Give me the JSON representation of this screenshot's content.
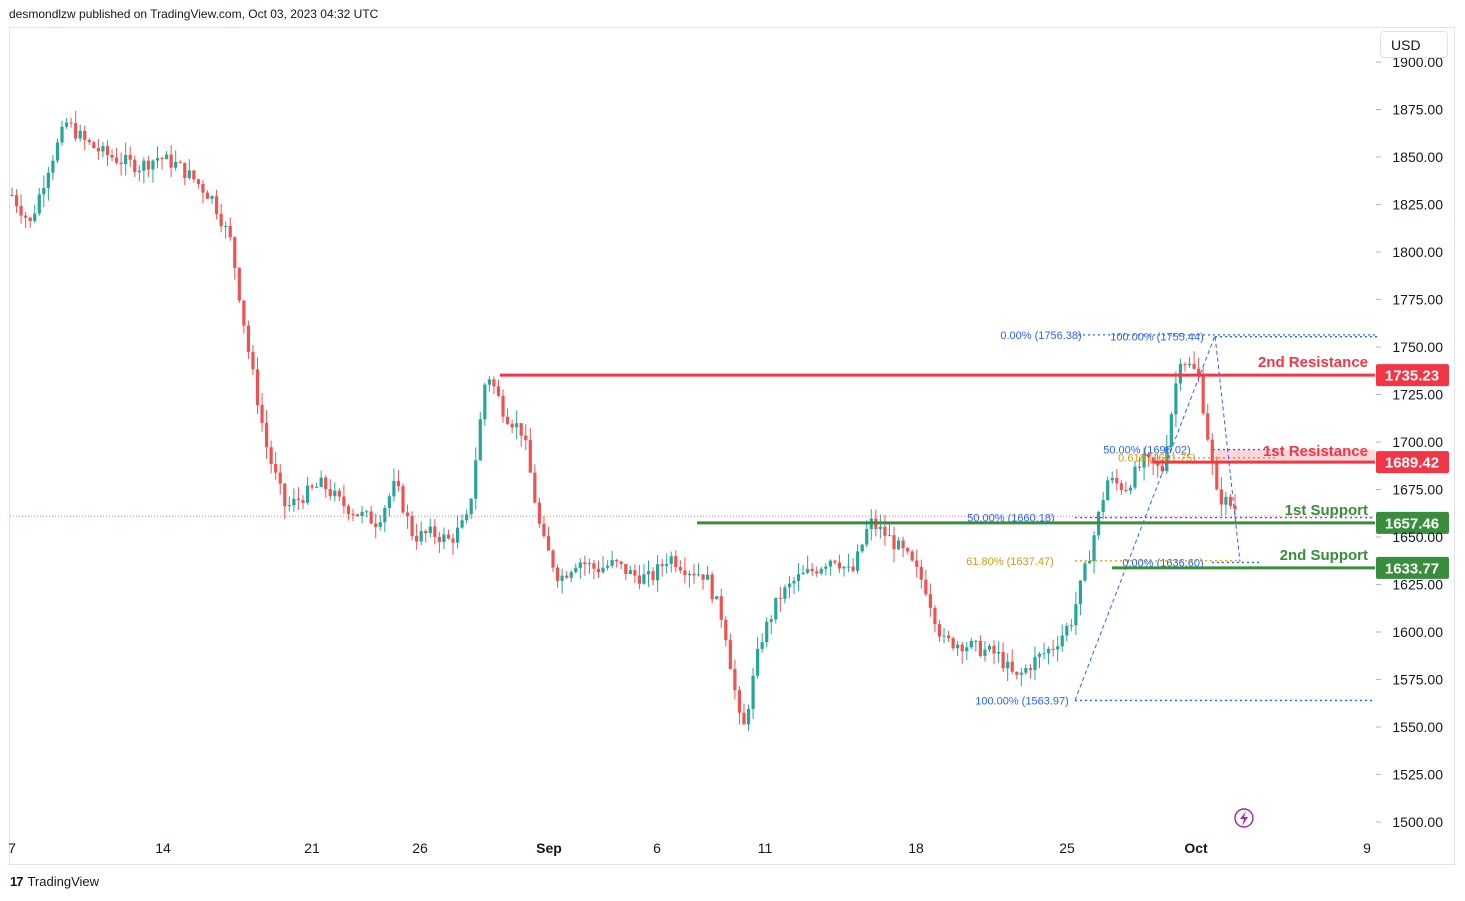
{
  "header": {
    "publisher": "desmondlzw published on TradingView.com, Oct 03, 2023 04:32 UTC"
  },
  "currency_button": "USD",
  "footer": {
    "brand": "TradingView",
    "logo_text": "17"
  },
  "colors": {
    "up": "#26a69a",
    "down": "#ef5350",
    "resistance": "#f23645",
    "support": "#388e3c",
    "fib_blue": "#2962ff",
    "fib_orange": "#ff9800",
    "lightning": "#9c27b0"
  },
  "chart_data": {
    "type": "candlestick",
    "title": "",
    "y_axis": {
      "ticks": [
        "1900.00",
        "1875.00",
        "1850.00",
        "1825.00",
        "1800.00",
        "1775.00",
        "1750.00",
        "1725.00",
        "1700.00",
        "1675.00",
        "1650.00",
        "1625.00",
        "1600.00",
        "1575.00",
        "1550.00",
        "1525.00",
        "1500.00"
      ],
      "range": [
        1490,
        1905
      ]
    },
    "x_axis": {
      "ticks": [
        "7",
        "14",
        "21",
        "26",
        "Sep",
        "6",
        "11",
        "18",
        "25",
        "Oct",
        "9"
      ]
    },
    "levels": [
      {
        "label": "2nd Resistance",
        "value": "1735.23",
        "kind": "resistance"
      },
      {
        "label": "1st Resistance",
        "value": "1689.42",
        "kind": "resistance"
      },
      {
        "label": "1st Support",
        "value": "1657.46",
        "kind": "support"
      },
      {
        "label": "2nd Support",
        "value": "1633.77",
        "kind": "support"
      }
    ],
    "fib_labels": [
      {
        "text": "0.00% (1756.38)",
        "color": "blue"
      },
      {
        "text": "100.00% (1755.44)",
        "color": "blue"
      },
      {
        "text": "50.00% (1696.02)",
        "color": "blue"
      },
      {
        "text": "0.618 (1691.75)",
        "color": "orange"
      },
      {
        "text": "50.00% (1660.18)",
        "color": "blue"
      },
      {
        "text": "61.80% (1637.47)",
        "color": "orange"
      },
      {
        "text": "0.00% (1636.60)",
        "color": "blue"
      },
      {
        "text": "100.00% (1563.97)",
        "color": "blue"
      }
    ],
    "price_path": [
      [
        0,
        1830
      ],
      [
        1,
        1815
      ],
      [
        2,
        1845
      ],
      [
        3,
        1868
      ],
      [
        4,
        1858
      ],
      [
        5,
        1852
      ],
      [
        6,
        1848
      ],
      [
        7,
        1845
      ],
      [
        8,
        1850
      ],
      [
        9,
        1846
      ],
      [
        10,
        1838
      ],
      [
        11,
        1828
      ],
      [
        12,
        1805
      ],
      [
        13,
        1745
      ],
      [
        14,
        1695
      ],
      [
        15,
        1665
      ],
      [
        16,
        1672
      ],
      [
        17,
        1678
      ],
      [
        18,
        1668
      ],
      [
        19,
        1662
      ],
      [
        20,
        1658
      ],
      [
        21,
        1678
      ],
      [
        22,
        1650
      ],
      [
        23,
        1652
      ],
      [
        24,
        1648
      ],
      [
        25,
        1660
      ],
      [
        26,
        1738
      ],
      [
        27,
        1715
      ],
      [
        28,
        1705
      ],
      [
        29,
        1650
      ],
      [
        30,
        1628
      ],
      [
        31,
        1638
      ],
      [
        32,
        1633
      ],
      [
        33,
        1636
      ],
      [
        34,
        1630
      ],
      [
        35,
        1628
      ],
      [
        36,
        1640
      ],
      [
        37,
        1633
      ],
      [
        38,
        1630
      ],
      [
        39,
        1605
      ],
      [
        40,
        1545
      ],
      [
        41,
        1595
      ],
      [
        42,
        1618
      ],
      [
        43,
        1628
      ],
      [
        44,
        1633
      ],
      [
        45,
        1640
      ],
      [
        46,
        1630
      ],
      [
        47,
        1658
      ],
      [
        48,
        1650
      ],
      [
        49,
        1640
      ],
      [
        50,
        1625
      ],
      [
        51,
        1595
      ],
      [
        52,
        1594
      ],
      [
        53,
        1591
      ],
      [
        54,
        1588
      ],
      [
        55,
        1575
      ],
      [
        56,
        1585
      ],
      [
        57,
        1592
      ],
      [
        58,
        1605
      ],
      [
        59,
        1640
      ],
      [
        60,
        1680
      ],
      [
        61,
        1676
      ],
      [
        62,
        1690
      ],
      [
        63,
        1685
      ],
      [
        64,
        1745
      ],
      [
        65,
        1735
      ],
      [
        66,
        1672
      ],
      [
        67,
        1665
      ]
    ]
  }
}
